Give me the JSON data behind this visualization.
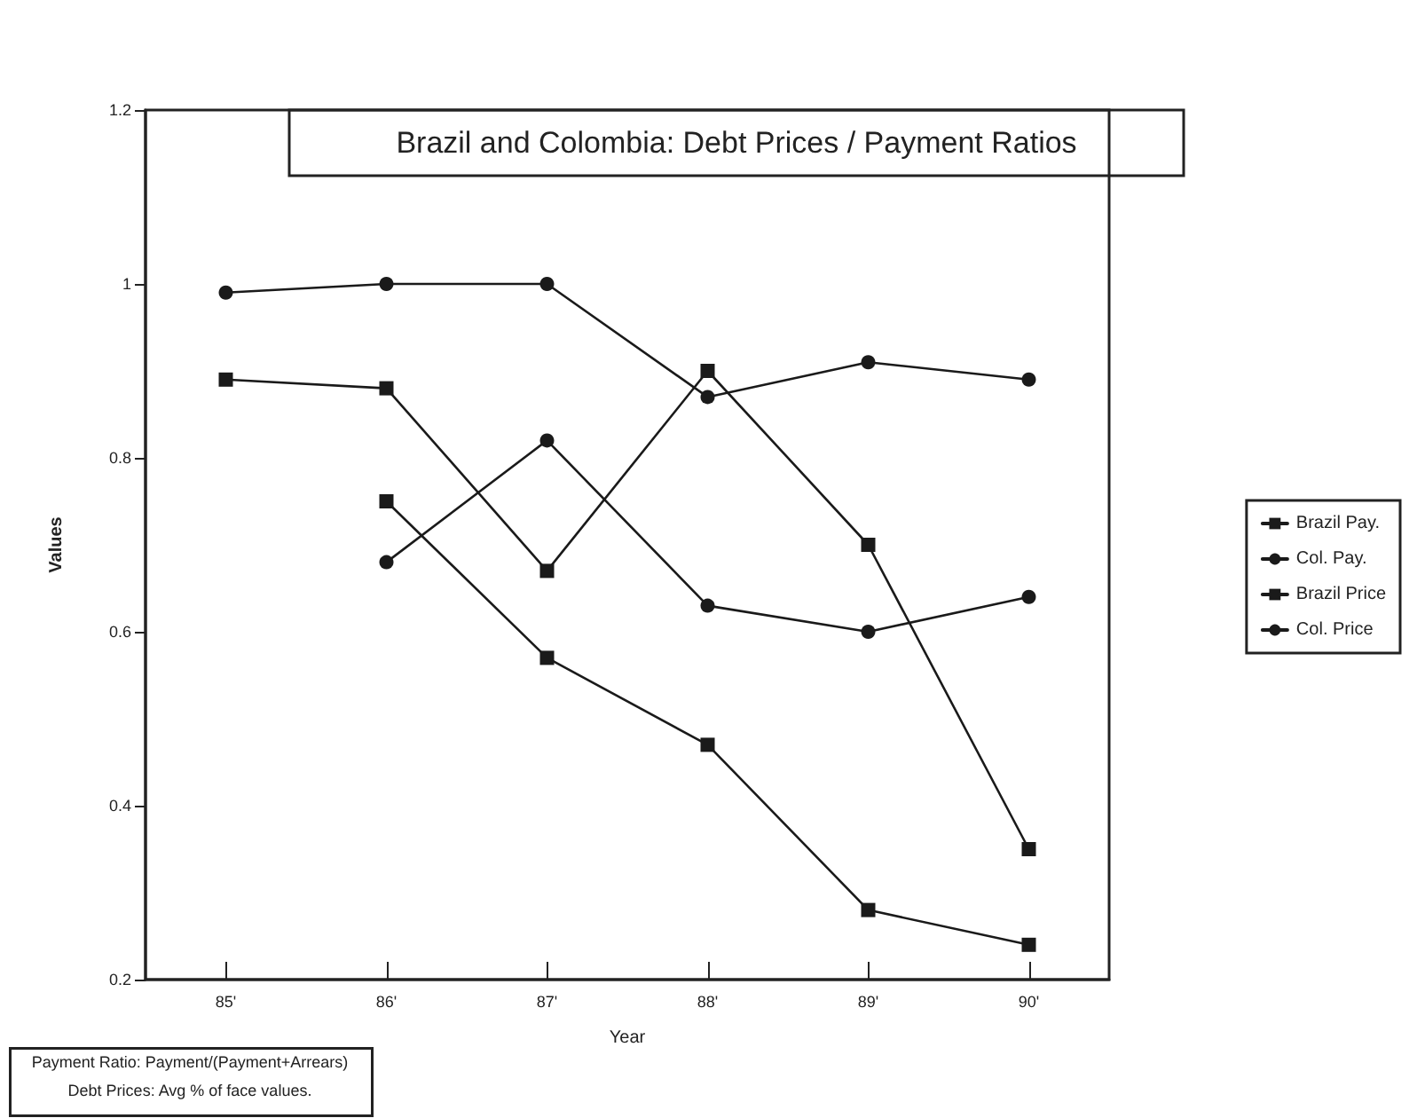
{
  "chart_data": {
    "type": "line",
    "title": "Brazil and Colombia: Debt Prices / Payment Ratios",
    "xlabel": "Year",
    "ylabel": "Values",
    "categories": [
      "85'",
      "86'",
      "87'",
      "88'",
      "89'",
      "90'"
    ],
    "series": [
      {
        "name": "Brazil Pay.",
        "color": "#1a1a1a",
        "marker": "square",
        "values": [
          0.89,
          0.88,
          0.67,
          0.9,
          0.7,
          0.35
        ]
      },
      {
        "name": "Col. Pay.",
        "color": "#1a1a1a",
        "marker": "circle",
        "values": [
          0.99,
          1.0,
          1.0,
          0.87,
          0.91,
          0.89
        ]
      },
      {
        "name": "Brazil Price",
        "color": "#1a1a1a",
        "marker": "square",
        "values": [
          null,
          0.75,
          0.57,
          0.47,
          0.28,
          0.24
        ]
      },
      {
        "name": "Col. Price",
        "color": "#1a1a1a",
        "marker": "circle",
        "values": [
          null,
          0.68,
          0.82,
          0.63,
          0.6,
          0.64
        ]
      }
    ],
    "ylim": [
      0.2,
      1.2
    ],
    "yticks": [
      0.2,
      0.4,
      0.6,
      0.8,
      1,
      1.2
    ],
    "grid": false,
    "legend": "right",
    "line_style": "solid",
    "annotations": [
      "Payment Ratio: Payment/(Payment+Arrears)",
      "Debt Prices: Avg % of face values."
    ]
  }
}
